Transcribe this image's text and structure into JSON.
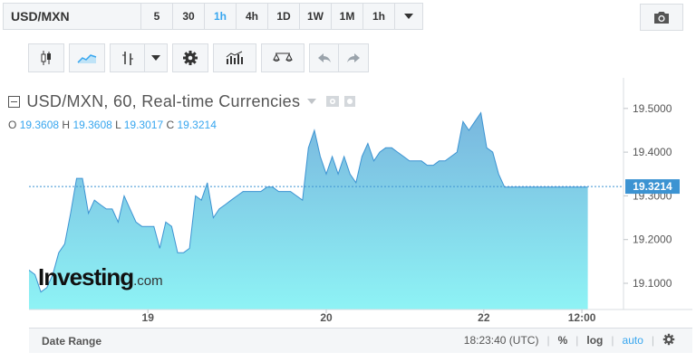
{
  "toolbar": {
    "symbol": "USD/MXN",
    "intervals": [
      {
        "label": "5",
        "active": false
      },
      {
        "label": "30",
        "active": false
      },
      {
        "label": "1h",
        "active": true
      },
      {
        "label": "4h",
        "active": false
      },
      {
        "label": "1D",
        "active": false
      },
      {
        "label": "1W",
        "active": false
      },
      {
        "label": "1M",
        "active": false
      },
      {
        "label": "1h",
        "active": false
      }
    ]
  },
  "legend": {
    "title": "USD/MXN, 60, Real-time Currencies",
    "o_label": "O",
    "o": "19.3608",
    "h_label": "H",
    "h": "19.3608",
    "l_label": "L",
    "l": "19.3017",
    "c_label": "C",
    "c": "19.3214"
  },
  "logo": {
    "main": "Investing",
    "suffix": ".com"
  },
  "bottom": {
    "date_range": "Date Range",
    "time": "18:23:40 (UTC)",
    "percent": "%",
    "log": "log",
    "auto": "auto"
  },
  "colors": {
    "accent": "#37a6ef",
    "area_top": "#79b6de",
    "area_bottom": "#8ef3f5",
    "line": "#3c93d2"
  },
  "chart_data": {
    "type": "area",
    "y_ticks": [
      "19.5000",
      "19.4000",
      "19.3000",
      "19.2000",
      "19.1000"
    ],
    "x_ticks": [
      {
        "label": "19",
        "x": 20.0
      },
      {
        "label": "20",
        "x": 50.0
      },
      {
        "label": "22",
        "x": 76.5
      },
      {
        "label": "12:00",
        "x": 93.0
      }
    ],
    "current_value": "19.3214",
    "ylim": [
      19.04,
      19.57
    ],
    "x": [
      -4,
      -3,
      -2,
      -1,
      0,
      1,
      2,
      3,
      4,
      5,
      6,
      7,
      8,
      9,
      10,
      11,
      12,
      13,
      14,
      15,
      16,
      17,
      18,
      19,
      20,
      21,
      22,
      23,
      24,
      25,
      26,
      27,
      28,
      29,
      30,
      31,
      32,
      33,
      34,
      35,
      36,
      37,
      38,
      39,
      40,
      41,
      42,
      43,
      44,
      45,
      46,
      47,
      48,
      49,
      50,
      51,
      52,
      53,
      54,
      55,
      56,
      57,
      58,
      59,
      60,
      61,
      62,
      63,
      64,
      65,
      66,
      67,
      68,
      69,
      70,
      71,
      72,
      73,
      74,
      75,
      76,
      77,
      78,
      79,
      80,
      81,
      82,
      83,
      84,
      85,
      86,
      87,
      88,
      89,
      90,
      91,
      92,
      93,
      94,
      95,
      96,
      97,
      98,
      99,
      100,
      101
    ],
    "values": [
      19.14,
      19.12,
      19.1,
      19.11,
      19.13,
      19.12,
      19.08,
      19.09,
      19.12,
      19.17,
      19.19,
      19.26,
      19.34,
      19.34,
      19.26,
      19.29,
      19.28,
      19.27,
      19.27,
      19.24,
      19.3,
      19.27,
      19.24,
      19.23,
      19.23,
      19.23,
      19.18,
      19.24,
      19.23,
      19.17,
      19.17,
      19.18,
      19.3,
      19.29,
      19.33,
      19.25,
      19.27,
      19.28,
      19.29,
      19.3,
      19.31,
      19.31,
      19.31,
      19.31,
      19.32,
      19.32,
      19.31,
      19.31,
      19.31,
      19.3,
      19.29,
      19.41,
      19.45,
      19.39,
      19.35,
      19.39,
      19.35,
      19.39,
      19.35,
      19.33,
      19.39,
      19.42,
      19.38,
      19.4,
      19.41,
      19.41,
      19.4,
      19.39,
      19.38,
      19.38,
      19.38,
      19.37,
      19.37,
      19.38,
      19.38,
      19.39,
      19.4,
      19.47,
      19.45,
      19.47,
      19.49,
      19.41,
      19.4,
      19.35,
      19.32,
      19.32,
      19.32,
      19.32,
      19.32,
      19.32,
      19.32,
      19.32,
      19.32,
      19.32,
      19.32,
      19.32,
      19.32,
      19.32,
      19.32,
      19.32,
      19.32,
      19.32,
      19.32,
      19.32,
      19.32,
      19.32
    ]
  }
}
